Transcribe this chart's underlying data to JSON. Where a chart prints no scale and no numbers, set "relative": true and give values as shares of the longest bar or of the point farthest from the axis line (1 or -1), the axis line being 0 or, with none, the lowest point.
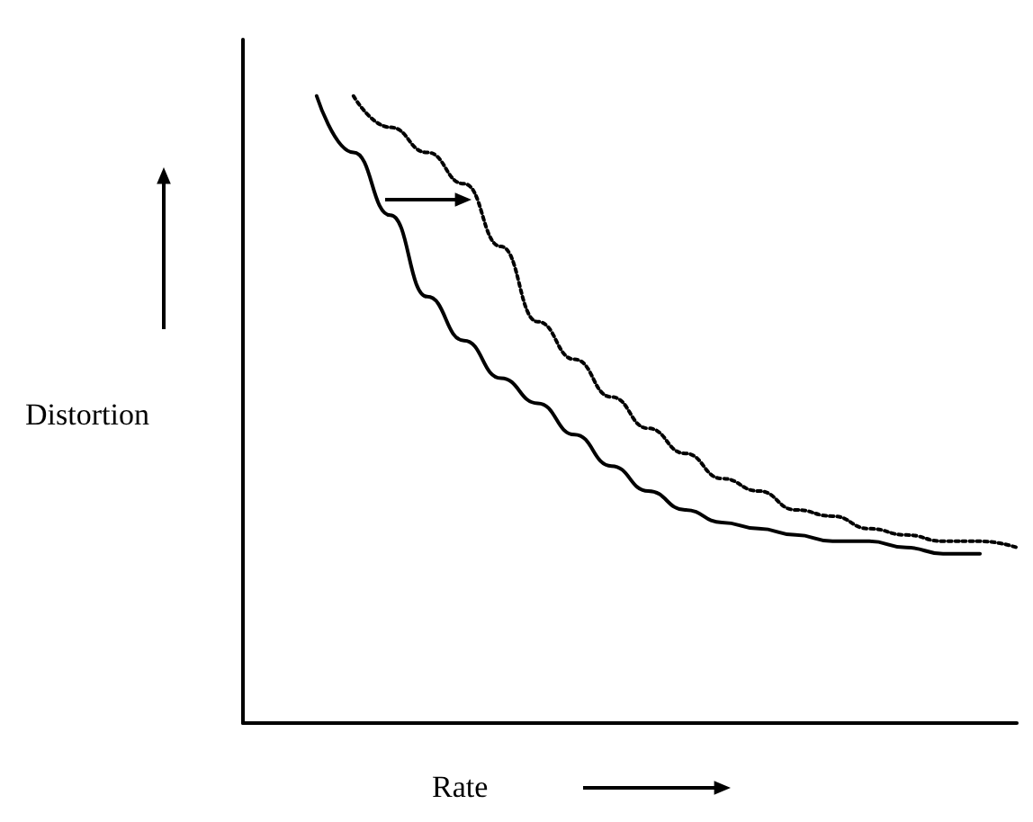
{
  "chart_data": {
    "type": "line",
    "relative": true,
    "xlabel": "Rate",
    "ylabel": "Distortion",
    "grid": false,
    "marker": "none",
    "categories": [
      null,
      null,
      null,
      null,
      null,
      null,
      null,
      null,
      null,
      null,
      null,
      null,
      null,
      null,
      null,
      null,
      null,
      null,
      null,
      null,
      null,
      null
    ],
    "series": [
      {
        "color": "#000000",
        "line_style": "solid",
        "values": [
          null,
          null,
          1.0,
          0.91,
          0.81,
          0.68,
          0.61,
          0.55,
          0.51,
          0.46,
          0.41,
          0.37,
          0.34,
          0.32,
          0.31,
          0.3,
          0.29,
          0.29,
          0.28,
          0.27,
          0.27,
          null
        ]
      },
      {
        "color": "#000000",
        "line_style": "dotted",
        "values": [
          null,
          null,
          null,
          1.0,
          0.95,
          0.91,
          0.86,
          0.76,
          0.64,
          0.58,
          0.52,
          0.47,
          0.43,
          0.39,
          0.37,
          0.34,
          0.33,
          0.31,
          0.3,
          0.29,
          0.29,
          0.28
        ]
      }
    ]
  }
}
